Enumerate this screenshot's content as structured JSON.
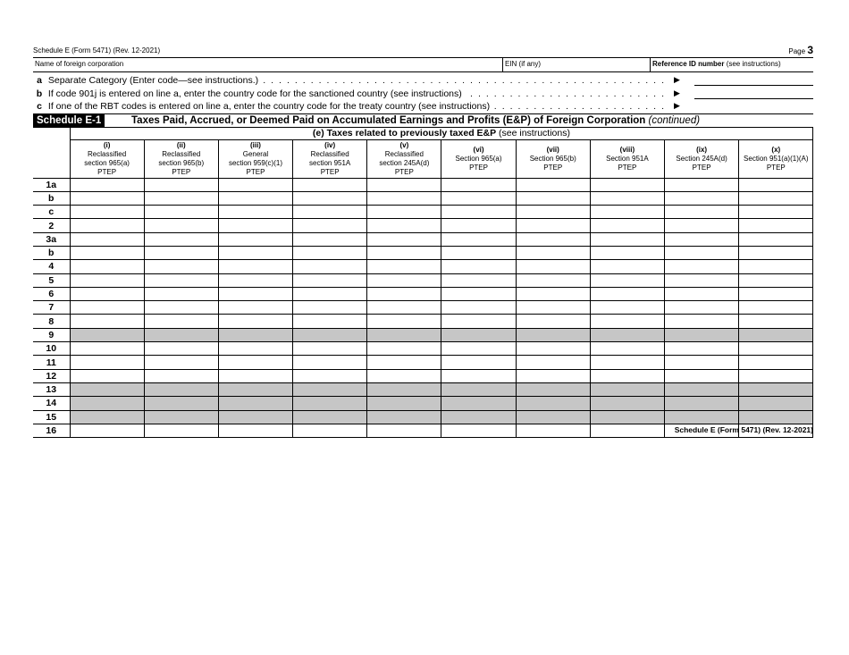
{
  "header": {
    "form_title": "Schedule E (Form 5471) (Rev. 12-2021)",
    "page_label": "Page",
    "page_number": "3"
  },
  "name_row": {
    "name_label": "Name of foreign corporation",
    "ein_label": "EIN (if any)",
    "ref_label_bold": "Reference ID number",
    "ref_label_rest": " (see instructions)"
  },
  "lines": [
    {
      "letter": "a",
      "text": "Separate Category (Enter code—see instructions.)"
    },
    {
      "letter": "b",
      "text": "If code 901j is entered on line a, enter the country code for the sanctioned country (see instructions)"
    },
    {
      "letter": "c",
      "text": "If one of the RBT codes is entered on line a, enter the country code for the treaty country (see instructions)"
    }
  ],
  "schedule": {
    "tag": "Schedule E-1",
    "title": "Taxes Paid, Accrued, or Deemed Paid on Accumulated Earnings and Profits (E&P) of Foreign Corporation",
    "title_suffix": "(continued)"
  },
  "section_e": {
    "bold": "(e) Taxes related to previously taxed E&P",
    "rest": " (see instructions)"
  },
  "columns": [
    {
      "num": "(i)",
      "l1": "Reclassified",
      "l2": "section 965(a)",
      "l3": "PTEP"
    },
    {
      "num": "(ii)",
      "l1": "Reclassified",
      "l2": "section 965(b)",
      "l3": "PTEP"
    },
    {
      "num": "(iii)",
      "l1": "General",
      "l2": "section 959(c)(1)",
      "l3": "PTEP"
    },
    {
      "num": "(iv)",
      "l1": "Reclassified",
      "l2": "section 951A",
      "l3": "PTEP"
    },
    {
      "num": "(v)",
      "l1": "Reclassified",
      "l2": "section 245A(d)",
      "l3": "PTEP"
    },
    {
      "num": "(vi)",
      "l1": "Section 965(a)",
      "l2": "PTEP",
      "l3": ""
    },
    {
      "num": "(vii)",
      "l1": "Section 965(b)",
      "l2": "PTEP",
      "l3": ""
    },
    {
      "num": "(viii)",
      "l1": "Section 951A",
      "l2": "PTEP",
      "l3": ""
    },
    {
      "num": "(ix)",
      "l1": "Section 245A(d)",
      "l2": "PTEP",
      "l3": ""
    },
    {
      "num": "(x)",
      "l1": "Section 951(a)(1)(A)",
      "l2": "PTEP",
      "l3": ""
    }
  ],
  "rows": [
    {
      "label": "1a",
      "shaded": false
    },
    {
      "label": "b",
      "shaded": false
    },
    {
      "label": "c",
      "shaded": false
    },
    {
      "label": "2",
      "shaded": false
    },
    {
      "label": "3a",
      "shaded": false
    },
    {
      "label": "b",
      "shaded": false
    },
    {
      "label": "4",
      "shaded": false
    },
    {
      "label": "5",
      "shaded": false
    },
    {
      "label": "6",
      "shaded": false
    },
    {
      "label": "7",
      "shaded": false
    },
    {
      "label": "8",
      "shaded": false
    },
    {
      "label": "9",
      "shaded": true
    },
    {
      "label": "10",
      "shaded": false
    },
    {
      "label": "11",
      "shaded": false
    },
    {
      "label": "12",
      "shaded": false
    },
    {
      "label": "13",
      "shaded": true
    },
    {
      "label": "14",
      "shaded": true
    },
    {
      "label": "15",
      "shaded": true
    },
    {
      "label": "16",
      "shaded": false
    }
  ],
  "footer": "Schedule E (Form 5471) (Rev. 12-2021)",
  "colors": {
    "shade": "#c6c6c6",
    "banner": "#000000"
  }
}
